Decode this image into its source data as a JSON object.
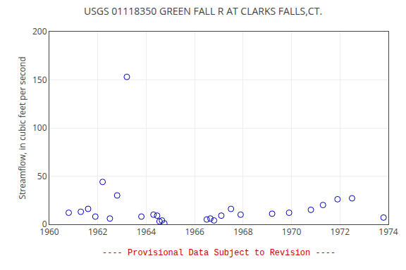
{
  "chart_data": {
    "type": "scatter",
    "title": "USGS 01118350 GREEN FALL R AT CLARKS FALLS,CT.",
    "ylabel": "Streamflow, in cubic feet per second",
    "annotations": [
      {
        "text": "---- Provisional Data Subject to Revision ----",
        "color": "#cc0000"
      }
    ],
    "x": [
      1960.8,
      1961.3,
      1961.6,
      1961.9,
      1962.2,
      1962.5,
      1962.8,
      1963.2,
      1963.8,
      1964.3,
      1964.45,
      1964.55,
      1964.65,
      1964.75,
      1966.5,
      1966.65,
      1966.8,
      1967.1,
      1967.5,
      1967.9,
      1969.2,
      1969.9,
      1970.8,
      1971.3,
      1971.9,
      1972.5,
      1973.8
    ],
    "values": [
      12,
      13,
      16,
      8,
      44,
      6,
      30,
      153,
      8,
      10,
      9,
      3,
      4,
      1,
      5,
      6,
      4,
      9,
      16,
      10,
      11,
      12,
      15,
      20,
      26,
      27,
      7
    ],
    "color": "#0000bb",
    "marker": "circle-open",
    "xlim": [
      1960,
      1974
    ],
    "ylim": [
      0,
      200
    ],
    "xticks": [
      1960,
      1962,
      1964,
      1966,
      1968,
      1970,
      1972,
      1974
    ],
    "yticks": [
      0,
      50,
      100,
      150,
      200
    ],
    "grid": true
  }
}
